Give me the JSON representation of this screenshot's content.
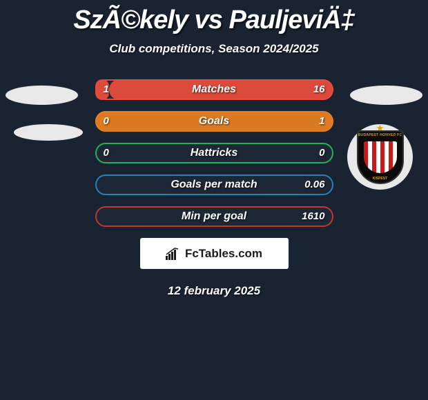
{
  "colors": {
    "background": "#1a2332",
    "text": "#ffffff",
    "badge_box_bg": "#ffffff",
    "badge_box_text": "#1a1a1a",
    "decoration_ellipse": "#e8e8e8",
    "club_stripes_red": "#c91a1a",
    "club_stripes_white": "#ffffff",
    "club_star": "#d4a017"
  },
  "header": {
    "title": "SzÃ©kely vs PauljeviÄ‡",
    "subtitle": "Club competitions, Season 2024/2025"
  },
  "stats": {
    "rows": [
      {
        "label": "Matches",
        "left": "1",
        "right": "16",
        "left_pct": 6,
        "right_pct": 94,
        "color": "#e74c3c"
      },
      {
        "label": "Goals",
        "left": "0",
        "right": "1",
        "left_pct": 0,
        "right_pct": 100,
        "color": "#e67e22"
      },
      {
        "label": "Hattricks",
        "left": "0",
        "right": "0",
        "left_pct": 0,
        "right_pct": 0,
        "color": "#27ae60"
      },
      {
        "label": "Goals per match",
        "left": "",
        "right": "0.06",
        "left_pct": 0,
        "right_pct": 0,
        "color": "#2980b9"
      },
      {
        "label": "Min per goal",
        "left": "",
        "right": "1610",
        "left_pct": 0,
        "right_pct": 0,
        "color": "#c0392b"
      }
    ]
  },
  "club_badge": {
    "top_text": "BUDAPEST HONVED FC",
    "bottom_text": "KISPEST"
  },
  "branding": {
    "text": "FcTables.com"
  },
  "footer": {
    "date": "12 february 2025"
  }
}
